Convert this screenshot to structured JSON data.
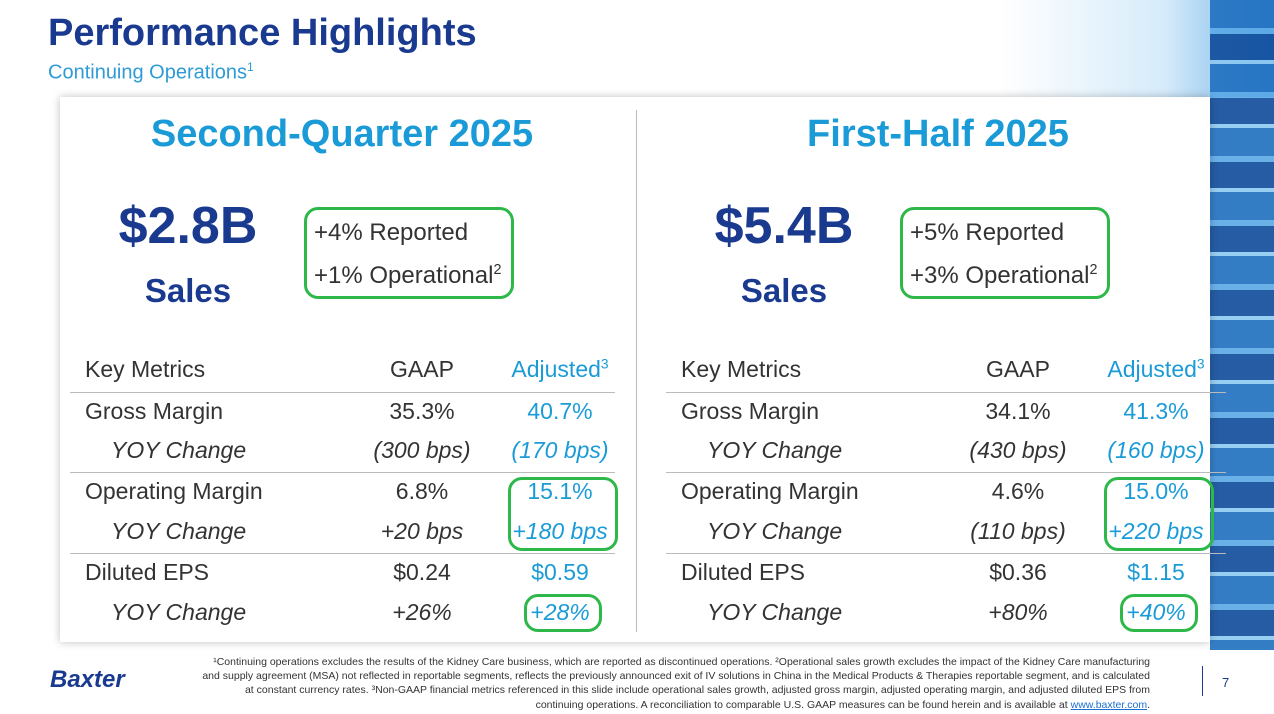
{
  "header": {
    "title": "Performance Highlights",
    "subtitle": "Continuing Operations",
    "subtitle_sup": "1"
  },
  "panels": [
    {
      "heading": "Second-Quarter 2025",
      "value": "$2.8B",
      "value_label": "Sales",
      "growth": [
        {
          "text": "+4% Reported"
        },
        {
          "text": "+1% Operational",
          "sup": "2"
        }
      ],
      "table": {
        "header": [
          "Key Metrics",
          "GAAP",
          "Adjusted"
        ],
        "header_sup": "3",
        "rows": [
          [
            "Gross Margin",
            "35.3%",
            "40.7%"
          ],
          [
            "YOY Change",
            "(300 bps)",
            "(170 bps)"
          ],
          [
            "Operating Margin",
            "6.8%",
            "15.1%"
          ],
          [
            "YOY Change",
            "+20 bps",
            "+180 bps"
          ],
          [
            "Diluted EPS",
            "$0.24",
            "$0.59"
          ],
          [
            "YOY Change",
            "+26%",
            "+28%"
          ]
        ]
      }
    },
    {
      "heading": "First-Half 2025",
      "value": "$5.4B",
      "value_label": "Sales",
      "growth": [
        {
          "text": "+5% Reported"
        },
        {
          "text": "+3% Operational",
          "sup": "2"
        }
      ],
      "table": {
        "header": [
          "Key Metrics",
          "GAAP",
          "Adjusted"
        ],
        "header_sup": "3",
        "rows": [
          [
            "Gross Margin",
            "34.1%",
            "41.3%"
          ],
          [
            "YOY Change",
            "(430 bps)",
            "(160 bps)"
          ],
          [
            "Operating Margin",
            "4.6%",
            "15.0%"
          ],
          [
            "YOY Change",
            "(110 bps)",
            "+220 bps"
          ],
          [
            "Diluted EPS",
            "$0.36",
            "$1.15"
          ],
          [
            "YOY Change",
            "+80%",
            "+40%"
          ]
        ]
      }
    }
  ],
  "footer": {
    "logo": "Baxter",
    "footnote": "¹Continuing operations excludes the results of the Kidney Care business, which are reported as discontinued operations. ²Operational sales growth excludes the impact of the Kidney Care manufacturing and supply agreement (MSA) not reflected in reportable segments, reflects the previously announced exit of IV solutions in China in the Medical Products & Therapies reportable segment, and is calculated at constant currency rates. ³Non-GAAP financial metrics referenced in this slide include operational sales growth, adjusted gross margin, adjusted operating margin, and adjusted diluted EPS from continuing operations. A reconciliation to comparable U.S. GAAP measures can be found herein and is available at",
    "link": "www.baxter.com",
    "link_end": ".",
    "page": "7"
  }
}
